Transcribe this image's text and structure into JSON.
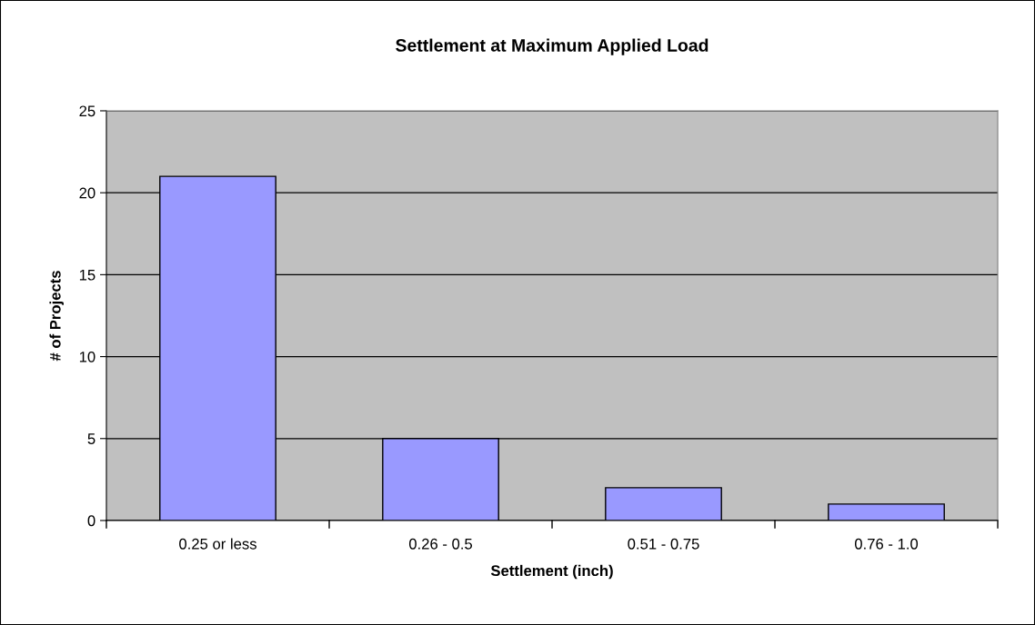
{
  "chart_data": {
    "type": "bar",
    "title": "Settlement at Maximum Applied Load",
    "xlabel": "Settlement (inch)",
    "ylabel": "# of Projects",
    "categories": [
      "0.25 or less",
      "0.26 - 0.5",
      "0.51 - 0.75",
      "0.76 - 1.0"
    ],
    "values": [
      21,
      5,
      2,
      1
    ],
    "color": "#9999ff",
    "ylim": [
      0,
      25
    ],
    "yticks": [
      0,
      5,
      10,
      15,
      20,
      25
    ],
    "grid": "y",
    "legend": false
  }
}
